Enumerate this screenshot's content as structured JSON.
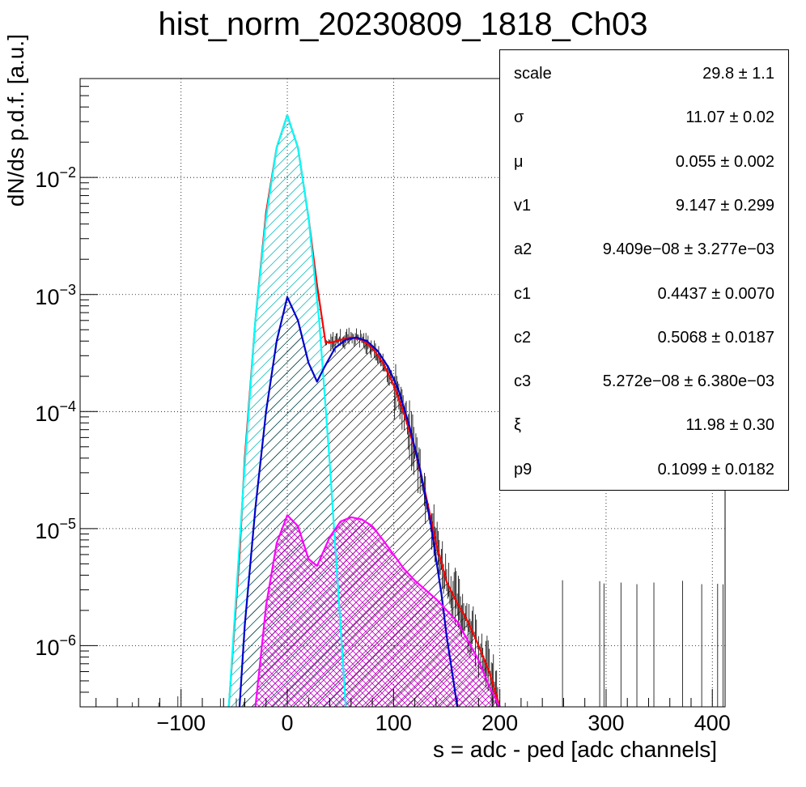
{
  "chart_data": {
    "type": "line",
    "title": "hist_norm_20230809_1818_Ch03",
    "xlabel": "s = adc - ped [adc channels]",
    "ylabel": "dN/ds p.d.f. [a.u.]",
    "xlim": [
      -195,
      412
    ],
    "ylim": [
      3e-07,
      0.07
    ],
    "yscale": "log",
    "grid": true,
    "x_ticks": [
      "−100",
      "0",
      "100",
      "200",
      "300",
      "400"
    ],
    "x_tick_values": [
      -100,
      0,
      100,
      200,
      300,
      400
    ],
    "y_ticks": [
      {
        "base": "10",
        "exp": "−2",
        "value": 0.01
      },
      {
        "base": "10",
        "exp": "−3",
        "value": 0.001
      },
      {
        "base": "10",
        "exp": "−4",
        "value": 0.0001
      },
      {
        "base": "10",
        "exp": "−5",
        "value": 1e-05
      },
      {
        "base": "10",
        "exp": "−6",
        "value": 1e-06
      }
    ],
    "series": [
      {
        "color": "#ff0000",
        "style": "line",
        "x": [
          -55,
          -45,
          -40,
          -30,
          -20,
          -10,
          0,
          10,
          20,
          28,
          36,
          42,
          50,
          60,
          70,
          80,
          90,
          100,
          110,
          120,
          130,
          140,
          150,
          160,
          170,
          180,
          190,
          200
        ],
        "y": [
          3e-07,
          6e-06,
          4e-05,
          0.0006,
          0.005,
          0.018,
          0.034,
          0.018,
          0.0045,
          0.0012,
          0.00039,
          0.00039,
          0.00041,
          0.00043,
          0.00041,
          0.00035,
          0.00026,
          0.00017,
          9.5e-05,
          4.8e-05,
          2e-05,
          7.5e-06,
          3.5e-06,
          2.3e-06,
          1.6e-06,
          1e-06,
          6e-07,
          3e-07
        ]
      },
      {
        "color": "#00ffff",
        "style": "fill-hatch",
        "x": [
          -55,
          -50,
          -40,
          -30,
          -20,
          -10,
          0,
          10,
          20,
          30,
          40,
          50,
          55
        ],
        "y": [
          3e-07,
          1.5e-06,
          3.5e-05,
          0.0006,
          0.0045,
          0.018,
          0.034,
          0.018,
          0.0045,
          0.0006,
          3.5e-05,
          1.5e-06,
          3e-07
        ]
      },
      {
        "color": "#0000cc",
        "style": "fill-hatch",
        "x": [
          -45,
          -40,
          -30,
          -20,
          -10,
          0,
          10,
          20,
          28,
          35,
          45,
          55,
          65,
          75,
          85,
          95,
          105,
          115,
          125,
          135,
          140,
          145,
          150,
          155,
          160
        ],
        "y": [
          3e-07,
          1.5e-06,
          1.5e-05,
          0.0001,
          0.0004,
          0.00095,
          0.0006,
          0.00026,
          0.00018,
          0.00024,
          0.00035,
          0.00041,
          0.00043,
          0.0004,
          0.00033,
          0.00024,
          0.00015,
          7.5e-05,
          3.2e-05,
          1.1e-05,
          5.5e-06,
          2.8e-06,
          1.2e-06,
          6e-07,
          3e-07
        ]
      },
      {
        "color": "#ff00ff",
        "style": "fill-hatch",
        "x": [
          -30,
          -25,
          -20,
          -10,
          0,
          10,
          20,
          28,
          40,
          50,
          60,
          70,
          80,
          90,
          100,
          110,
          120,
          130,
          140,
          150,
          160,
          170,
          180,
          190,
          200
        ],
        "y": [
          3e-07,
          8e-07,
          2.2e-06,
          7.5e-06,
          1.3e-05,
          1.05e-05,
          5.5e-06,
          4.8e-06,
          8.5e-06,
          1.15e-05,
          1.25e-05,
          1.2e-05,
          1.05e-05,
          8e-06,
          6e-06,
          4.5e-06,
          3.6e-06,
          3e-06,
          2.5e-06,
          2e-06,
          1.6e-06,
          1.1e-06,
          7.5e-07,
          4.5e-07,
          3e-07
        ]
      }
    ]
  },
  "stats": [
    {
      "name": "scale",
      "value": "29.8 ± 1.1"
    },
    {
      "name": "σ",
      "value": "11.07 ± 0.02"
    },
    {
      "name": "μ",
      "value": "0.055 ± 0.002"
    },
    {
      "name": "v1",
      "value": "9.147 ± 0.299"
    },
    {
      "name": "a2",
      "value": "9.409e−08 ± 3.277e−03"
    },
    {
      "name": "c1",
      "value": "0.4437 ± 0.0070"
    },
    {
      "name": "c2",
      "value": "0.5068 ± 0.0187"
    },
    {
      "name": "c3",
      "value": "5.272e−08 ± 6.380e−03"
    },
    {
      "name": "ξ",
      "value": "11.98 ± 0.30"
    },
    {
      "name": "p9",
      "value": "0.1099 ± 0.0182"
    }
  ]
}
